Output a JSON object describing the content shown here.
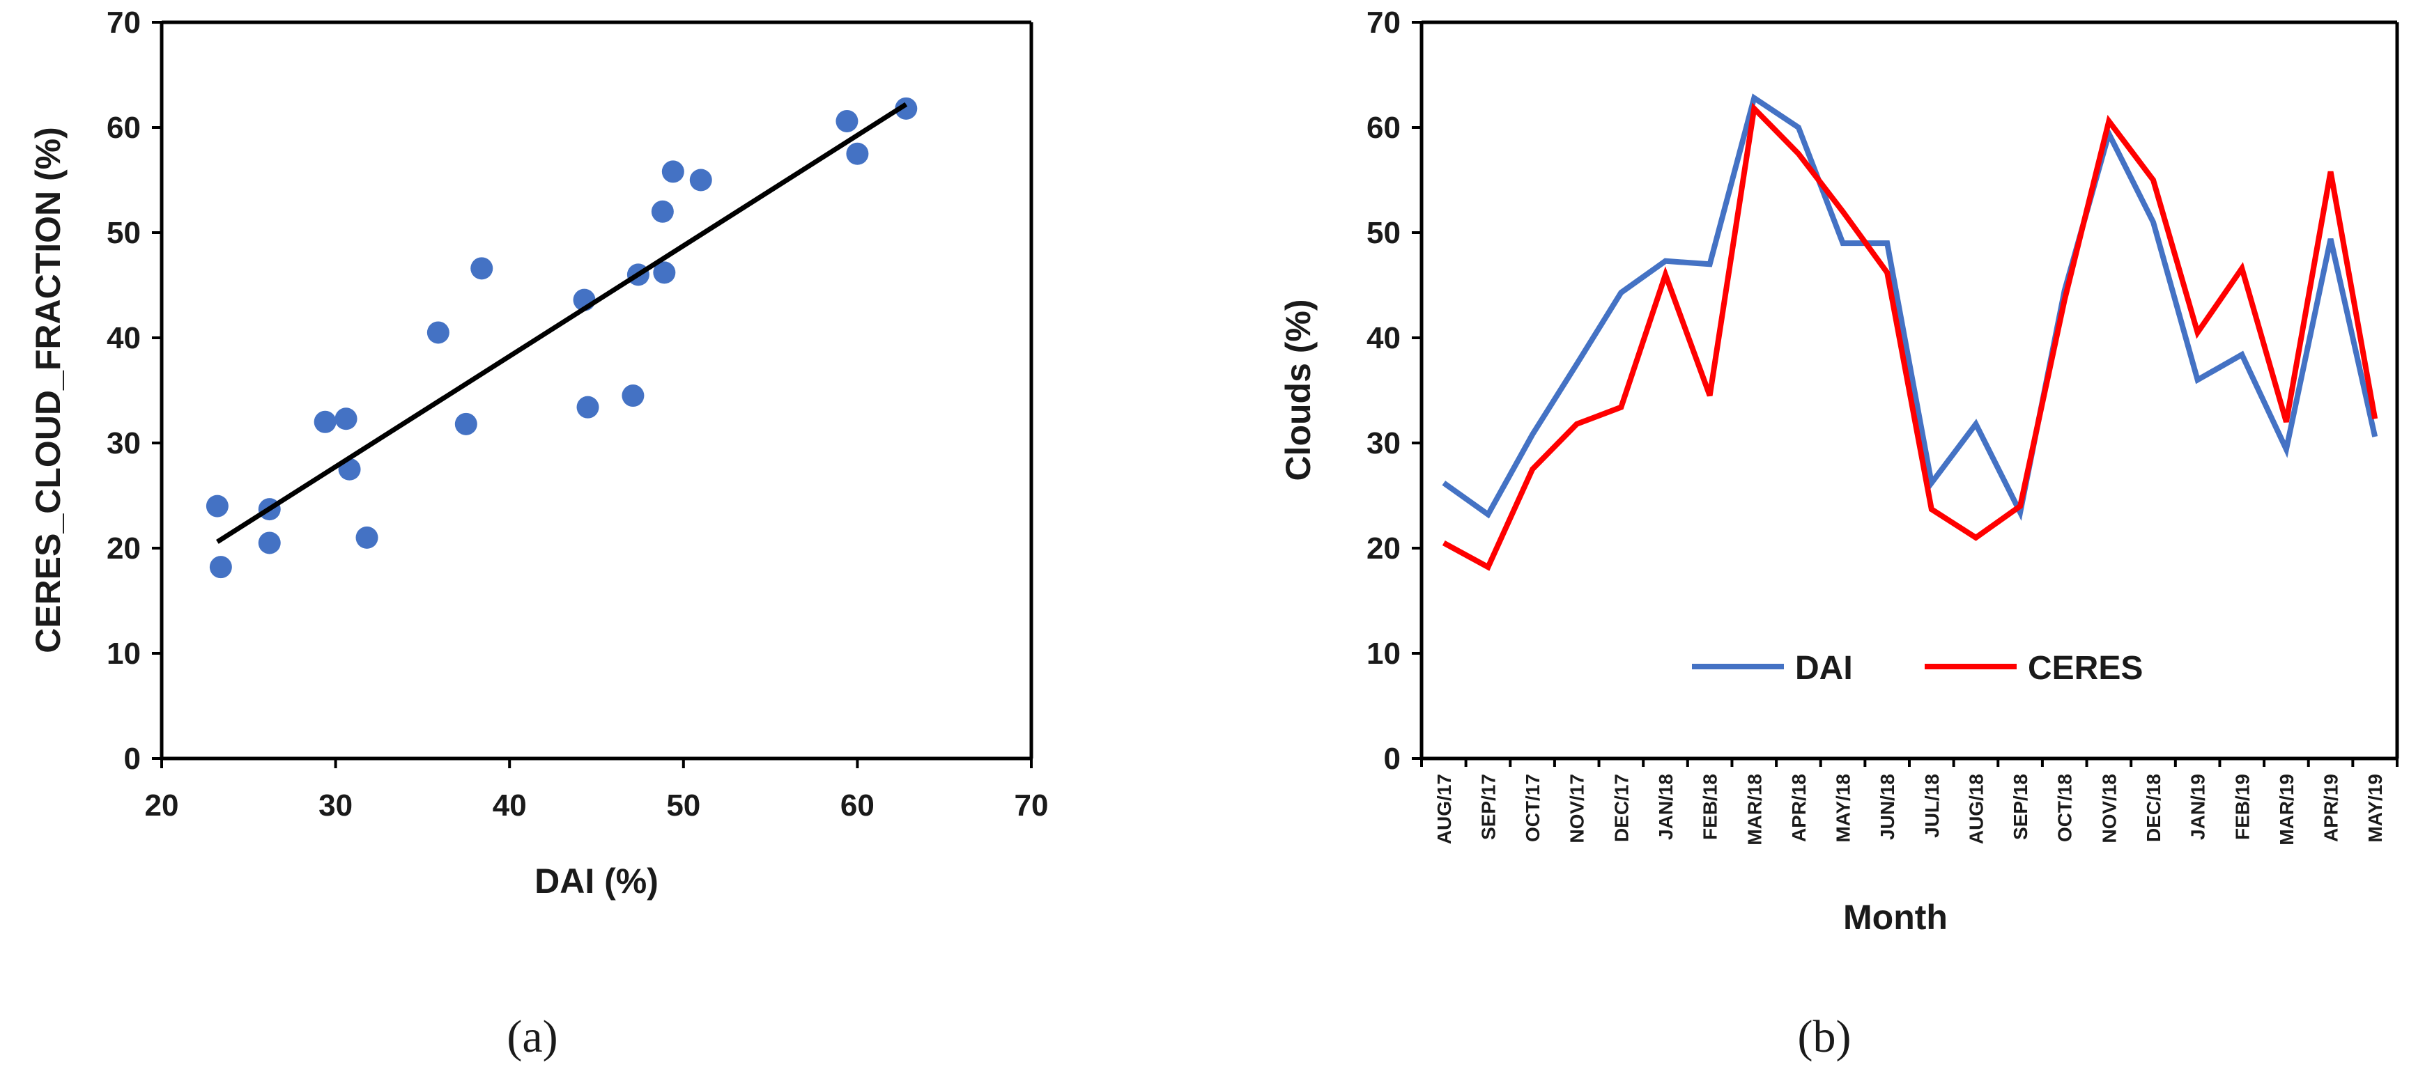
{
  "chart_data": [
    {
      "type": "scatter",
      "caption": "(a)",
      "xlabel": "DAI (%)",
      "ylabel": "CERES_CLOUD_FRACTION (%)",
      "xlim": [
        20,
        70
      ],
      "ylim": [
        0,
        70
      ],
      "xticks": [
        "20",
        "30",
        "40",
        "50",
        "60",
        "70"
      ],
      "yticks": [
        "0",
        "10",
        "20",
        "30",
        "40",
        "50",
        "60",
        "70"
      ],
      "grid": false,
      "points": [
        {
          "x": 23.2,
          "y": 24.0
        },
        {
          "x": 23.4,
          "y": 18.2
        },
        {
          "x": 26.2,
          "y": 23.7
        },
        {
          "x": 26.2,
          "y": 20.5
        },
        {
          "x": 29.4,
          "y": 32.0
        },
        {
          "x": 30.6,
          "y": 32.3
        },
        {
          "x": 30.8,
          "y": 27.5
        },
        {
          "x": 31.8,
          "y": 21.0
        },
        {
          "x": 35.9,
          "y": 40.5
        },
        {
          "x": 37.5,
          "y": 31.8
        },
        {
          "x": 38.4,
          "y": 46.6
        },
        {
          "x": 44.3,
          "y": 43.6
        },
        {
          "x": 44.5,
          "y": 33.4
        },
        {
          "x": 47.1,
          "y": 34.5
        },
        {
          "x": 47.4,
          "y": 46.0
        },
        {
          "x": 48.8,
          "y": 52.0
        },
        {
          "x": 48.9,
          "y": 46.2
        },
        {
          "x": 49.4,
          "y": 55.8
        },
        {
          "x": 51.0,
          "y": 55.0
        },
        {
          "x": 59.4,
          "y": 60.6
        },
        {
          "x": 60.0,
          "y": 57.5
        },
        {
          "x": 62.8,
          "y": 61.8
        }
      ],
      "trendline": {
        "x": [
          23.2,
          62.8
        ],
        "y": [
          20.6,
          62.2
        ]
      },
      "marker_color": "#4472C4",
      "trend_color": "#000000"
    },
    {
      "type": "line",
      "caption": "(b)",
      "xlabel": "Month",
      "ylabel": "Clouds (%)",
      "ylim": [
        0,
        70
      ],
      "yticks": [
        "0",
        "10",
        "20",
        "30",
        "40",
        "50",
        "60",
        "70"
      ],
      "grid": false,
      "legend_position": "bottom-center",
      "categories": [
        "AUG/17",
        "SEP/17",
        "OCT/17",
        "NOV/17",
        "DEC/17",
        "JAN/18",
        "FEB/18",
        "MAR/18",
        "APR/18",
        "MAY/18",
        "JUN/18",
        "JUL/18",
        "AUG/18",
        "SEP/18",
        "OCT/18",
        "NOV/18",
        "DEC/18",
        "JAN/19",
        "FEB/19",
        "MAR/19",
        "APR/19",
        "MAY/19"
      ],
      "series": [
        {
          "name": "DAI",
          "color": "#4472C4",
          "values": [
            26.2,
            23.2,
            30.8,
            37.5,
            44.3,
            47.3,
            47.0,
            62.8,
            60.0,
            49.0,
            49.0,
            26.2,
            31.8,
            23.4,
            44.5,
            59.4,
            51.0,
            36.0,
            38.4,
            29.4,
            49.4,
            30.6
          ]
        },
        {
          "name": "CERES",
          "color": "#FF0000",
          "values": [
            20.5,
            18.2,
            27.5,
            31.8,
            33.4,
            46.0,
            34.5,
            61.8,
            57.5,
            52.0,
            46.2,
            23.7,
            21.0,
            24.0,
            43.6,
            60.6,
            55.0,
            40.5,
            46.6,
            32.0,
            55.8,
            32.3
          ]
        }
      ]
    }
  ]
}
